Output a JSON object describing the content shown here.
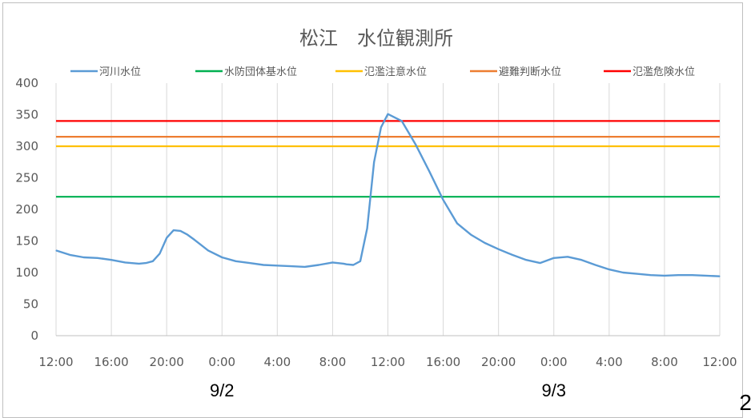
{
  "page_number": "2",
  "chart_data": {
    "type": "line",
    "title": "松江　水位観測所",
    "xlabel": "",
    "ylabel": "",
    "ylim": [
      0,
      400
    ],
    "yticks": [
      0,
      50,
      100,
      150,
      200,
      250,
      300,
      350,
      400
    ],
    "xtick_labels": [
      "12:00",
      "16:00",
      "20:00",
      "0:00",
      "4:00",
      "8:00",
      "12:00",
      "16:00",
      "20:00",
      "0:00",
      "4:00",
      "8:00",
      "12:00"
    ],
    "date_labels": [
      {
        "label": "9/2",
        "at_hours": 12
      },
      {
        "label": "9/3",
        "at_hours": 36
      }
    ],
    "x_range_hours": [
      0,
      48
    ],
    "grid": "vertical",
    "legend_position": "top",
    "series": [
      {
        "name": "河川水位",
        "color": "#5b9bd5",
        "x": [
          0,
          1,
          2,
          3,
          4,
          5,
          6,
          6.5,
          7,
          7.5,
          8,
          8.5,
          9,
          9.5,
          10,
          11,
          12,
          13,
          14,
          15,
          16,
          17,
          18,
          19,
          20,
          20.8,
          21,
          21.5,
          22,
          22.5,
          23,
          23.5,
          24,
          25,
          26,
          27,
          28,
          29,
          30,
          31,
          32,
          33,
          34,
          35,
          36,
          37,
          38,
          39,
          40,
          41,
          42,
          43,
          44,
          45,
          46,
          47,
          48
        ],
        "values": [
          135,
          128,
          124,
          123,
          120,
          116,
          114,
          115,
          118,
          130,
          155,
          167,
          166,
          160,
          152,
          135,
          124,
          118,
          115,
          112,
          111,
          110,
          109,
          112,
          116,
          114,
          113,
          112,
          118,
          170,
          275,
          330,
          351,
          340,
          303,
          260,
          215,
          178,
          160,
          147,
          137,
          128,
          120,
          115,
          123,
          125,
          120,
          112,
          105,
          100,
          98,
          96,
          95,
          96,
          96,
          95,
          94
        ]
      },
      {
        "name": "水防団体基水位",
        "color": "#00b050",
        "value": 220
      },
      {
        "name": "氾濫注意水位",
        "color": "#ffc000",
        "value": 300
      },
      {
        "name": "避難判断水位",
        "color": "#ed7d31",
        "value": 315
      },
      {
        "name": "氾濫危険水位",
        "color": "#ff0000",
        "value": 340
      }
    ]
  }
}
